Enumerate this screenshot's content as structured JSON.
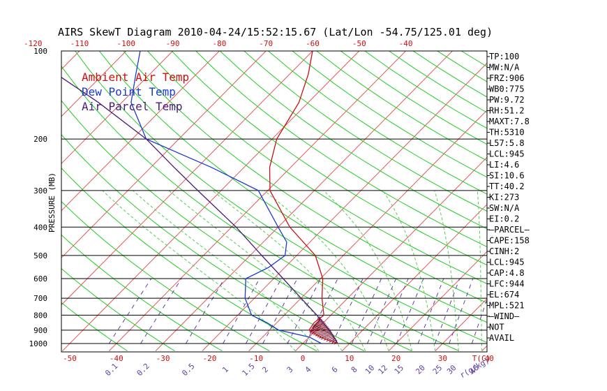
{
  "chart_data": {
    "type": "line",
    "title": "AIRS SkewT Diagram 2010-04-24/15:52:15.67 (Lat/Lon -54.75/125.01 deg)",
    "ylabel": "PRESSURE (MB)",
    "xlabel": "T(C)",
    "mixing_ratio_unit": "r(g/kg)",
    "y_scale": "log",
    "y_ticks": [
      "100",
      "200",
      "300",
      "400",
      "500",
      "600",
      "700",
      "800",
      "900",
      "1000"
    ],
    "top_ticks": [
      "-120",
      "-110",
      "-100",
      "-90",
      "-80",
      "-70",
      "-60",
      "-50",
      "-40"
    ],
    "bottom_ticks": [
      "-50",
      "-40",
      "-30",
      "-20",
      "-10",
      "0",
      "10",
      "20",
      "30",
      "40"
    ],
    "mixing_ratio_labels": [
      "0.1",
      "0.2",
      "0.5",
      "1",
      "1.5",
      "2",
      "3",
      "4",
      "6",
      "8",
      "10",
      "12",
      "15",
      "20",
      "25",
      "30",
      "40"
    ],
    "colors": {
      "isotherm": "#e05a5a",
      "dry_adiabat": "#22cc22",
      "moist_adiabat": "#55cc55",
      "mixing_ratio": "#6040a0",
      "temperature": "#cc1010",
      "dewpoint": "#1a3ad0",
      "parcel": "#4a1a7a",
      "cape_hatch": "#800020"
    },
    "legend": [
      {
        "label": "Ambient Air Temp",
        "color": "#cc1010"
      },
      {
        "label": "Dew Point Temp",
        "color": "#1a3ad0"
      },
      {
        "label": "Air Parcel Temp",
        "color": "#4a1a7a"
      }
    ],
    "series": [
      {
        "name": "Ambient Air Temp",
        "points": [
          [
            1000,
            7.5
          ],
          [
            950,
            2.5
          ],
          [
            900,
            -1.5
          ],
          [
            850,
            -2.0
          ],
          [
            800,
            -1.5
          ],
          [
            700,
            -5.5
          ],
          [
            600,
            -9.5
          ],
          [
            500,
            -16.0
          ],
          [
            400,
            -27.5
          ],
          [
            300,
            -39.5
          ],
          [
            250,
            -44.5
          ],
          [
            200,
            -49.0
          ],
          [
            150,
            -52.0
          ],
          [
            120,
            -56.0
          ],
          [
            100,
            -60.0
          ]
        ]
      },
      {
        "name": "Dew Point Temp",
        "points": [
          [
            1000,
            4.0
          ],
          [
            950,
            0.0
          ],
          [
            900,
            -8.0
          ],
          [
            850,
            -12.0
          ],
          [
            800,
            -17.0
          ],
          [
            700,
            -22.0
          ],
          [
            600,
            -26.0
          ],
          [
            550,
            -23.5
          ],
          [
            500,
            -22.5
          ],
          [
            450,
            -25.0
          ],
          [
            400,
            -30.0
          ],
          [
            300,
            -42.0
          ],
          [
            250,
            -57.0
          ],
          [
            200,
            -77.0
          ],
          [
            150,
            -88.0
          ],
          [
            120,
            -93.0
          ],
          [
            100,
            -97.0
          ]
        ]
      },
      {
        "name": "Air Parcel Temp",
        "points": [
          [
            1000,
            7.5
          ],
          [
            945,
            5.0
          ],
          [
            900,
            2.8
          ],
          [
            850,
            0.0
          ],
          [
            800,
            -3.0
          ],
          [
            700,
            -10.0
          ],
          [
            600,
            -18.0
          ],
          [
            500,
            -27.5
          ],
          [
            400,
            -39.0
          ],
          [
            300,
            -55.0
          ],
          [
            250,
            -65.0
          ],
          [
            200,
            -77.0
          ],
          [
            150,
            -95.0
          ],
          [
            120,
            -110.0
          ],
          [
            100,
            -120.0
          ]
        ]
      }
    ],
    "stats": [
      "TP:100",
      "MW:N/A",
      "FRZ:906",
      "WB0:775",
      "PW:9.72",
      "RH:51.2",
      "MAXT:7.8",
      "TH:5310",
      "L57:5.8",
      "LCL:945",
      "LI:4.6",
      "SI:10.6",
      "TT:40.2",
      "KI:273",
      "SW:N/A",
      "EI:0.2",
      "—PARCEL—",
      "CAPE:158",
      "CINH:2",
      "LCL:945",
      "CAP:4.8",
      "LFC:944",
      "EL:674",
      "MPL:521",
      "—WIND—",
      "NOT",
      "AVAIL"
    ]
  }
}
